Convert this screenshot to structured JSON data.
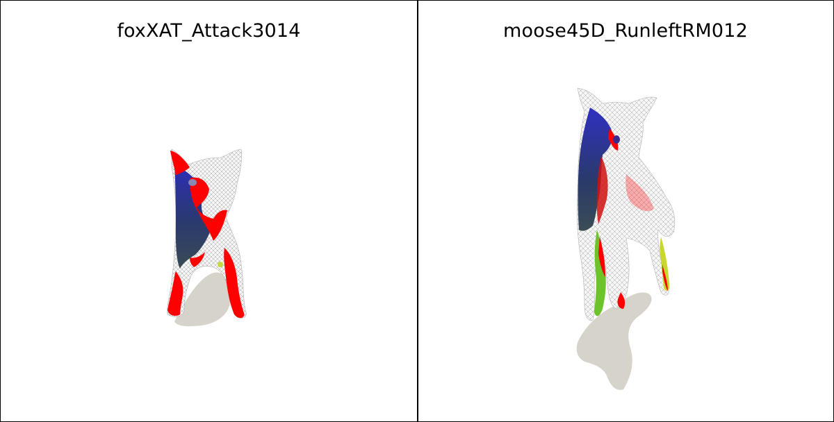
{
  "viewports": [
    {
      "title": "foxXAT_Attack3014"
    },
    {
      "title": "moose45D_RunleftRM012"
    }
  ],
  "colors": {
    "background": "#ffffff",
    "shadow": "#d6d3cb",
    "mesh_fill": "#f4f4f4",
    "wireframe": "#9a9a9a",
    "highlight_red": "#ff0000",
    "highlight_blue": "#2a2ab8",
    "highlight_green": "#66cc22"
  }
}
